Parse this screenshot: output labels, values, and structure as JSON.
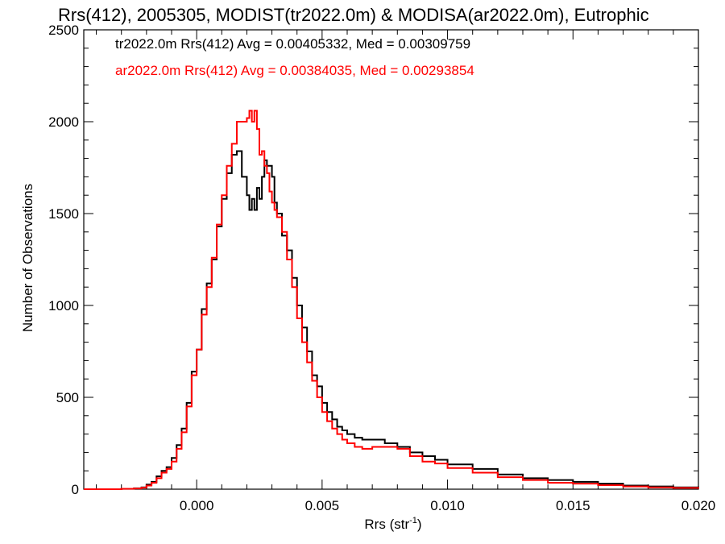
{
  "chart_data": {
    "type": "line",
    "title": "Rrs(412), 2005305, MODIST(tr2022.0m) & MODISA(ar2022.0m), Eutrophic",
    "xlabel_main": "Rrs (str",
    "xlabel_sup": "-1",
    "xlabel_close": ")",
    "ylabel": "Number of Observations",
    "xlim": [
      -0.0045,
      0.02
    ],
    "ylim": [
      0,
      2500
    ],
    "x_ticks": [
      0.0,
      0.005,
      0.01,
      0.015,
      0.02
    ],
    "x_tick_labels": [
      "0.000",
      "0.005",
      "0.010",
      "0.015",
      "0.020"
    ],
    "y_ticks": [
      0,
      500,
      1000,
      1500,
      2000,
      2500
    ],
    "y_tick_labels": [
      "0",
      "500",
      "1000",
      "1500",
      "2000",
      "2500"
    ],
    "legend": [
      {
        "text": "tr2022.0m Rrs(412) Avg = 0.00405332, Med = 0.00309759",
        "color": "#000000"
      },
      {
        "text": "ar2022.0m Rrs(412) Avg = 0.00384035, Med = 0.00293854",
        "color": "#ff0000"
      }
    ],
    "series": [
      {
        "name": "tr2022.0m",
        "color": "#000000",
        "x": [
          -0.0045,
          -0.0035,
          -0.003,
          -0.0025,
          -0.0022,
          -0.002,
          -0.0018,
          -0.0016,
          -0.0014,
          -0.0012,
          -0.001,
          -0.0008,
          -0.0006,
          -0.0004,
          -0.0002,
          0.0,
          0.0002,
          0.0004,
          0.0006,
          0.0008,
          0.001,
          0.0012,
          0.0014,
          0.0016,
          0.0018,
          0.002,
          0.0021,
          0.0022,
          0.0023,
          0.0024,
          0.0025,
          0.0026,
          0.0027,
          0.0028,
          0.0029,
          0.003,
          0.0031,
          0.0032,
          0.0034,
          0.0036,
          0.0038,
          0.004,
          0.0042,
          0.0044,
          0.0046,
          0.0048,
          0.005,
          0.0052,
          0.0054,
          0.0056,
          0.0058,
          0.006,
          0.0063,
          0.0066,
          0.007,
          0.0075,
          0.008,
          0.0085,
          0.009,
          0.0095,
          0.01,
          0.011,
          0.012,
          0.013,
          0.014,
          0.015,
          0.016,
          0.017,
          0.018,
          0.019,
          0.02
        ],
        "y": [
          0,
          0,
          2,
          5,
          10,
          25,
          40,
          70,
          100,
          120,
          170,
          240,
          330,
          470,
          640,
          760,
          980,
          1120,
          1250,
          1430,
          1580,
          1720,
          1820,
          1840,
          1700,
          1600,
          1520,
          1580,
          1520,
          1640,
          1580,
          1700,
          1790,
          1760,
          1760,
          1700,
          1560,
          1500,
          1380,
          1300,
          1150,
          1000,
          880,
          750,
          620,
          560,
          470,
          420,
          380,
          340,
          320,
          300,
          280,
          270,
          270,
          250,
          230,
          200,
          180,
          160,
          135,
          110,
          80,
          60,
          50,
          40,
          30,
          20,
          15,
          10,
          5
        ]
      },
      {
        "name": "ar2022.0m",
        "color": "#ff0000",
        "x": [
          -0.0045,
          -0.0035,
          -0.003,
          -0.0025,
          -0.0022,
          -0.002,
          -0.0018,
          -0.0016,
          -0.0014,
          -0.0012,
          -0.001,
          -0.0008,
          -0.0006,
          -0.0004,
          -0.0002,
          0.0,
          0.0002,
          0.0004,
          0.0006,
          0.0008,
          0.001,
          0.0012,
          0.0014,
          0.0016,
          0.0018,
          0.002,
          0.0021,
          0.0022,
          0.0023,
          0.0024,
          0.0025,
          0.0026,
          0.0027,
          0.0028,
          0.0029,
          0.003,
          0.0031,
          0.0032,
          0.0034,
          0.0036,
          0.0038,
          0.004,
          0.0042,
          0.0044,
          0.0046,
          0.0048,
          0.005,
          0.0052,
          0.0054,
          0.0056,
          0.0058,
          0.006,
          0.0063,
          0.0066,
          0.007,
          0.0075,
          0.008,
          0.0085,
          0.009,
          0.0095,
          0.01,
          0.011,
          0.012,
          0.013,
          0.014,
          0.015,
          0.016,
          0.017,
          0.018,
          0.019,
          0.02
        ],
        "y": [
          0,
          0,
          2,
          4,
          8,
          20,
          35,
          60,
          90,
          110,
          150,
          220,
          310,
          450,
          620,
          760,
          950,
          1100,
          1260,
          1440,
          1600,
          1760,
          1880,
          2000,
          2000,
          2020,
          2060,
          2000,
          2060,
          1960,
          1820,
          1840,
          1760,
          1720,
          1620,
          1560,
          1520,
          1480,
          1400,
          1250,
          1100,
          930,
          800,
          690,
          590,
          500,
          420,
          370,
          330,
          300,
          270,
          250,
          230,
          220,
          230,
          230,
          220,
          180,
          150,
          140,
          115,
          90,
          65,
          50,
          35,
          30,
          22,
          15,
          10,
          7,
          3
        ]
      }
    ]
  }
}
